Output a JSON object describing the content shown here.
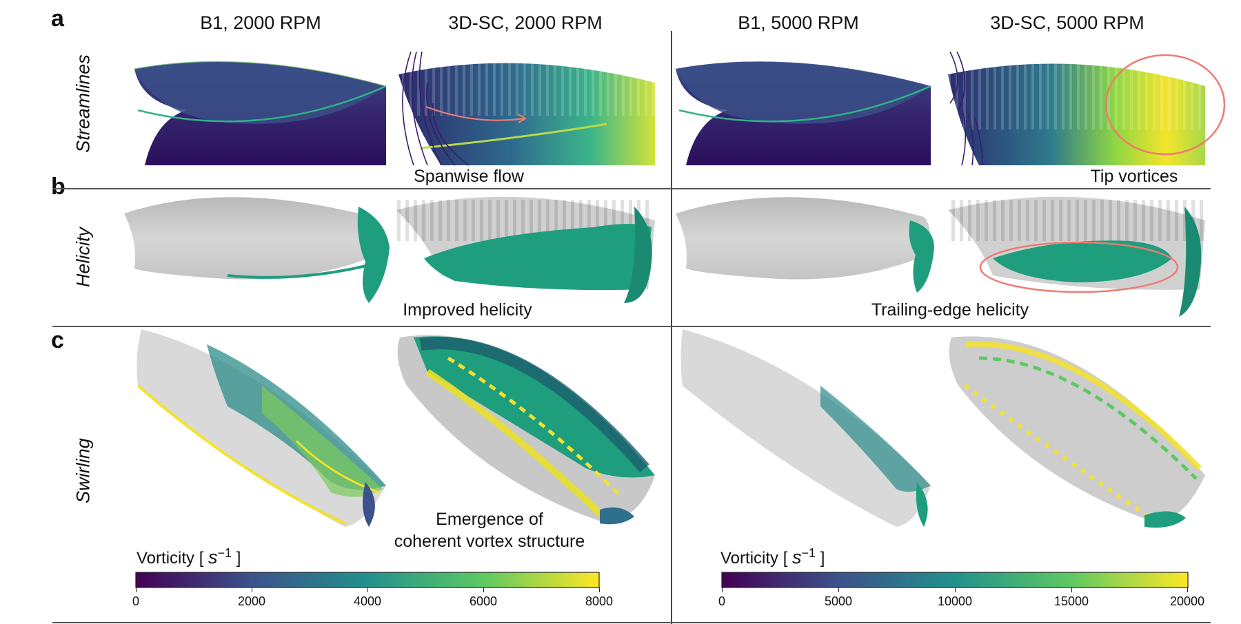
{
  "panels": [
    {
      "letter": "a",
      "row_label": "Streamlines"
    },
    {
      "letter": "b",
      "row_label": "Helicity"
    },
    {
      "letter": "c",
      "row_label": "Swirling"
    }
  ],
  "column_titles": [
    "B1, 2000 RPM",
    "3D-SC, 2000 RPM",
    "B1, 5000 RPM",
    "3D-SC, 5000 RPM"
  ],
  "annotations": {
    "spanwise_flow": "Spanwise flow",
    "tip_vortices": "Tip vortices",
    "improved_helicity": "Improved helicity",
    "trailing_edge_helicity": "Trailing-edge helicity",
    "emergence_line1": "Emergence of",
    "emergence_line2": "coherent vortex structure"
  },
  "colorbars": [
    {
      "title": "Vorticity [",
      "unit": "s",
      "exponent": "−1",
      "close": "]",
      "ticks": [
        "0",
        "2000",
        "4000",
        "6000",
        "8000"
      ],
      "min": 0,
      "max": 8000
    },
    {
      "title": "Vorticity [",
      "unit": "s",
      "exponent": "−1",
      "close": "]",
      "ticks": [
        "0",
        "5000",
        "10000",
        "15000",
        "20000"
      ],
      "min": 0,
      "max": 20000
    }
  ],
  "colors": {
    "viridis": [
      "#440154",
      "#3b528b",
      "#21918c",
      "#5ec962",
      "#fde725"
    ],
    "helicity_green": "#1f9e7e",
    "blade_gray": "#cfcfcf",
    "highlight": "#ee7a72"
  }
}
